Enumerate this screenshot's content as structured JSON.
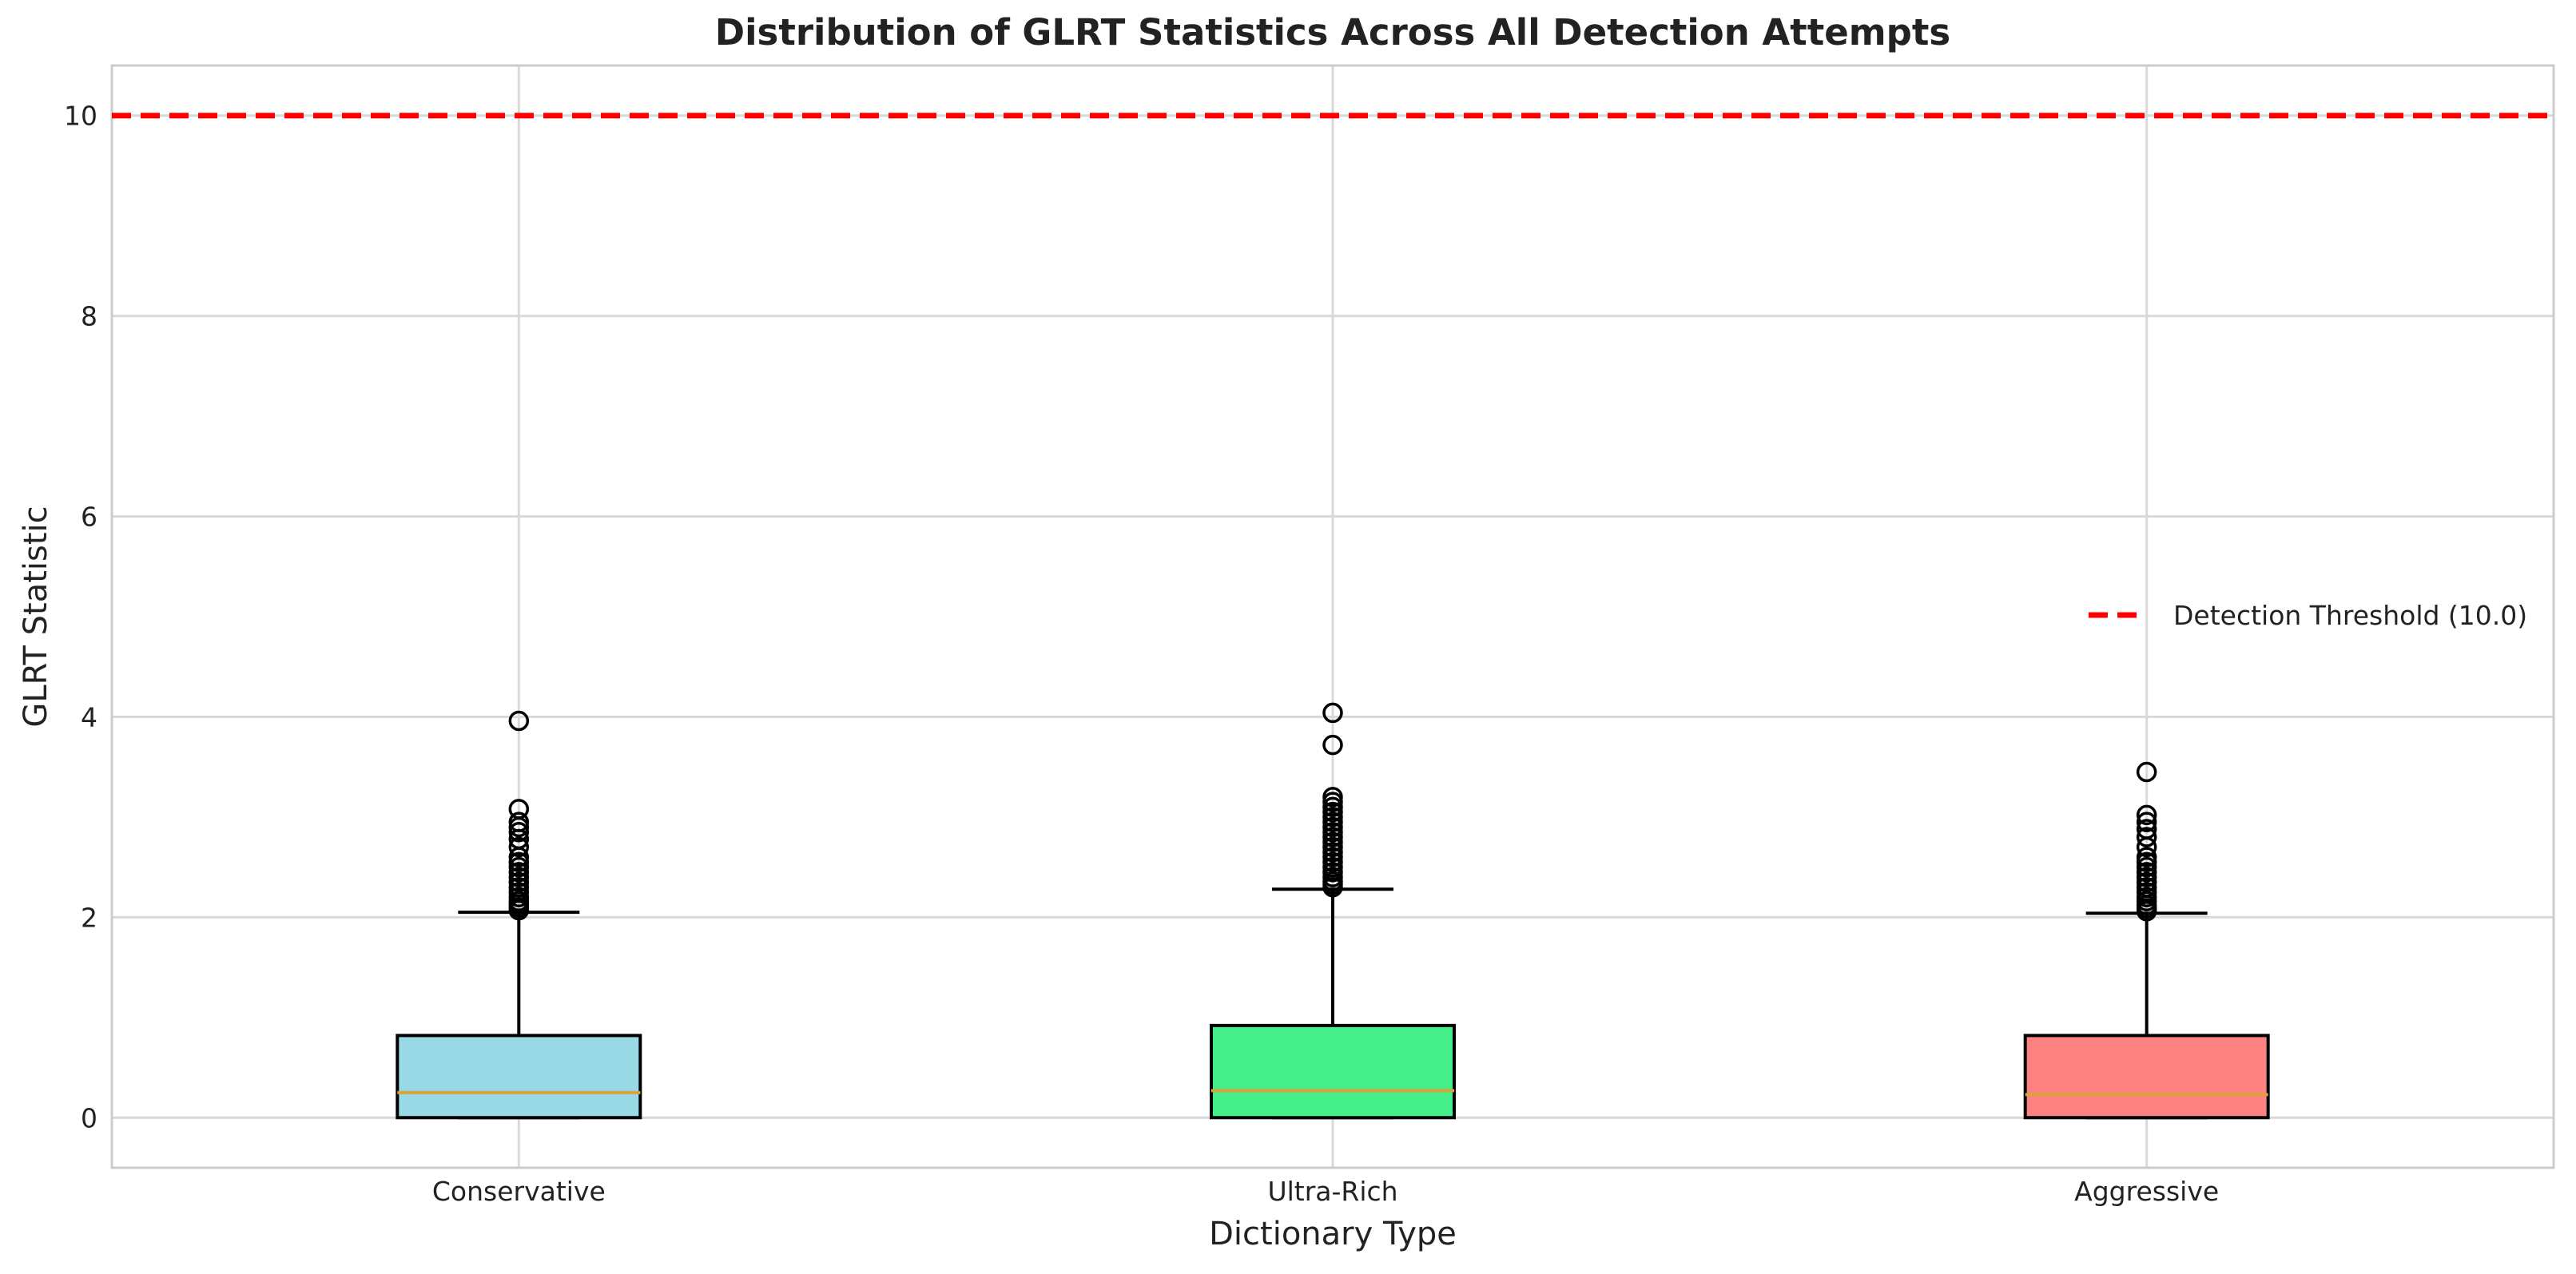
{
  "chart_data": {
    "type": "box",
    "title": "Distribution of GLRT Statistics Across All Detection Attempts",
    "xlabel": "Dictionary Type",
    "ylabel": "GLRT Statistic",
    "ylim": [
      -0.5,
      10.5
    ],
    "yticks": [
      0,
      2,
      4,
      6,
      8,
      10
    ],
    "grid": true,
    "legend": {
      "placement": "right",
      "entries": [
        "Detection Threshold (10.0)"
      ]
    },
    "threshold": {
      "value": 10.0,
      "label": "Detection Threshold (10.0)",
      "color": "#ff0000",
      "style": "dashed"
    },
    "median_color": "#d9a23b",
    "categories": [
      "Conservative",
      "Ultra-Rich",
      "Aggressive"
    ],
    "boxes": [
      {
        "category": "Conservative",
        "color": "#99d9e6",
        "whisker_low": 0.0,
        "q1": 0.0,
        "median": 0.25,
        "q3": 0.82,
        "whisker_high": 2.05,
        "outliers": [
          2.07,
          2.1,
          2.13,
          2.16,
          2.2,
          2.25,
          2.3,
          2.35,
          2.4,
          2.45,
          2.5,
          2.55,
          2.6,
          2.7,
          2.78,
          2.85,
          2.9,
          2.95,
          3.08,
          3.96
        ]
      },
      {
        "category": "Ultra-Rich",
        "color": "#44ee88",
        "whisker_low": 0.0,
        "q1": 0.0,
        "median": 0.27,
        "q3": 0.92,
        "whisker_high": 2.28,
        "outliers": [
          2.3,
          2.33,
          2.36,
          2.4,
          2.45,
          2.5,
          2.55,
          2.6,
          2.65,
          2.7,
          2.75,
          2.8,
          2.85,
          2.9,
          2.95,
          3.0,
          3.05,
          3.1,
          3.15,
          3.2,
          3.72,
          4.04
        ]
      },
      {
        "category": "Aggressive",
        "color": "#ff8282",
        "whisker_low": 0.0,
        "q1": 0.0,
        "median": 0.23,
        "q3": 0.82,
        "whisker_high": 2.04,
        "outliers": [
          2.06,
          2.09,
          2.12,
          2.16,
          2.2,
          2.25,
          2.3,
          2.35,
          2.4,
          2.45,
          2.5,
          2.55,
          2.6,
          2.7,
          2.8,
          2.88,
          2.95,
          3.02,
          3.45
        ]
      }
    ]
  }
}
